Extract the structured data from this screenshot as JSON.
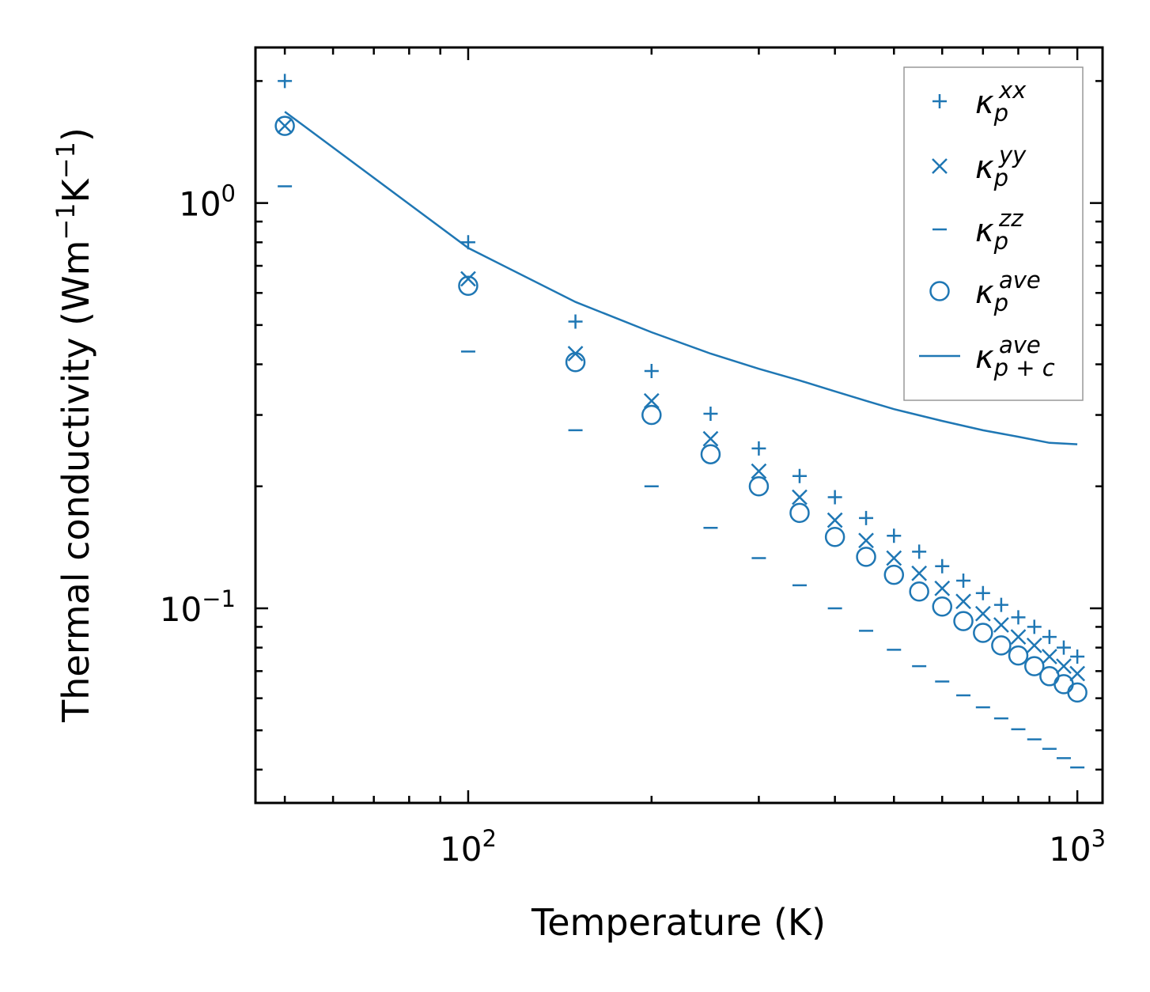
{
  "chart_data": {
    "type": "scatter",
    "title": "",
    "xlabel": "Temperature (K)",
    "ylabel_main": "Thermal conductivity (Wm",
    "ylabel_k": "K",
    "ylabel_sup": "−1",
    "ylabel_close": ")",
    "xscale": "log",
    "yscale": "log",
    "xlim": [
      44.75,
      1100
    ],
    "ylim": [
      0.0331,
      2.42
    ],
    "xticks": [
      {
        "base": "10",
        "exp": "2",
        "value": 100
      },
      {
        "base": "10",
        "exp": "3",
        "value": 1000
      }
    ],
    "yticks": [
      {
        "base": "10",
        "exp": "−1",
        "value": 0.1
      },
      {
        "base": "10",
        "exp": "0",
        "value": 1
      }
    ],
    "legend": {
      "position": "top-right"
    },
    "colors": {
      "series": "#1f77b4",
      "frame": "#000000",
      "legend_border": "#999999"
    },
    "series": [
      {
        "key": "xx",
        "marker": "plus",
        "label": {
          "base": "κ",
          "sub": "p",
          "sup": "xx"
        },
        "x": [
          50,
          100,
          150,
          200,
          250,
          300,
          350,
          400,
          450,
          500,
          550,
          600,
          650,
          700,
          750,
          800,
          850,
          900,
          950,
          1000
        ],
        "y": [
          2.0,
          0.8,
          0.51,
          0.385,
          0.302,
          0.248,
          0.212,
          0.188,
          0.167,
          0.151,
          0.138,
          0.127,
          0.117,
          0.109,
          0.102,
          0.095,
          0.09,
          0.085,
          0.08,
          0.076
        ]
      },
      {
        "key": "yy",
        "marker": "x",
        "label": {
          "base": "κ",
          "sub": "p",
          "sup": "yy"
        },
        "x": [
          50,
          100,
          150,
          200,
          250,
          300,
          350,
          400,
          450,
          500,
          550,
          600,
          650,
          700,
          750,
          800,
          850,
          900,
          950,
          1000
        ],
        "y": [
          1.55,
          0.65,
          0.425,
          0.325,
          0.262,
          0.218,
          0.188,
          0.165,
          0.147,
          0.133,
          0.122,
          0.112,
          0.104,
          0.097,
          0.091,
          0.085,
          0.081,
          0.076,
          0.072,
          0.069
        ]
      },
      {
        "key": "zz",
        "marker": "hline",
        "label": {
          "base": "κ",
          "sub": "p",
          "sup": "zz"
        },
        "x": [
          50,
          100,
          150,
          200,
          250,
          300,
          350,
          400,
          450,
          500,
          550,
          600,
          650,
          700,
          750,
          800,
          850,
          900,
          950,
          1000
        ],
        "y": [
          1.1,
          0.43,
          0.275,
          0.2,
          0.158,
          0.133,
          0.114,
          0.1,
          0.088,
          0.079,
          0.072,
          0.066,
          0.061,
          0.057,
          0.0535,
          0.0503,
          0.0475,
          0.045,
          0.0427,
          0.0405
        ]
      },
      {
        "key": "ave",
        "marker": "circle",
        "label": {
          "base": "κ",
          "sub": "p",
          "sup": "ave"
        },
        "x": [
          50,
          100,
          150,
          200,
          250,
          300,
          350,
          400,
          450,
          500,
          550,
          600,
          650,
          700,
          750,
          800,
          850,
          900,
          950,
          1000
        ],
        "y": [
          1.55,
          0.625,
          0.405,
          0.3,
          0.24,
          0.2,
          0.172,
          0.15,
          0.134,
          0.121,
          0.11,
          0.101,
          0.093,
          0.087,
          0.081,
          0.0765,
          0.072,
          0.068,
          0.065,
          0.062
        ]
      },
      {
        "key": "ave_pc",
        "marker": "line",
        "label": {
          "base": "κ",
          "sub": "p + c",
          "sup": "ave"
        },
        "x": [
          50,
          100,
          150,
          200,
          250,
          300,
          350,
          400,
          450,
          500,
          600,
          700,
          800,
          900,
          1000
        ],
        "y": [
          1.68,
          0.775,
          0.57,
          0.48,
          0.425,
          0.39,
          0.365,
          0.343,
          0.325,
          0.31,
          0.29,
          0.275,
          0.265,
          0.256,
          0.254
        ]
      }
    ]
  }
}
